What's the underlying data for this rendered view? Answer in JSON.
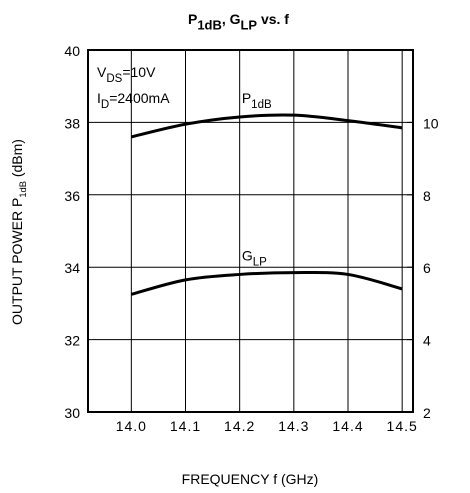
{
  "chart_data": {
    "type": "line",
    "title": [
      "P",
      "1dB",
      ", G",
      "LP",
      " vs. f"
    ],
    "x_label": "FREQUENCY  f (GHz)",
    "y_label": [
      "OUTPUT POWER P",
      "1dB",
      " (dBm)"
    ],
    "annotations": [
      [
        "V",
        "DS",
        "=10V"
      ],
      [
        "I",
        "D",
        "=2400mA"
      ]
    ],
    "x": [
      14.0,
      14.1,
      14.2,
      14.3,
      14.4,
      14.5
    ],
    "xlim": [
      13.92,
      14.52
    ],
    "xticks": [
      {
        "value": 14.0,
        "label": "14.0"
      },
      {
        "value": 14.1,
        "label": "14.1"
      },
      {
        "value": 14.2,
        "label": "14.2"
      },
      {
        "value": 14.3,
        "label": "14.3"
      },
      {
        "value": 14.4,
        "label": "14.4"
      },
      {
        "value": 14.5,
        "label": "14.5"
      }
    ],
    "ylim": [
      30,
      40
    ],
    "yticks": [
      30,
      32,
      34,
      36,
      38,
      40
    ],
    "y2lim": [
      2,
      12
    ],
    "y2ticks": [
      2,
      4,
      6,
      8,
      10
    ],
    "grid": true,
    "series": [
      {
        "name": [
          "P",
          "1dB"
        ],
        "color": "#000000",
        "values": [
          37.6,
          37.95,
          38.15,
          38.2,
          38.05,
          37.85
        ]
      },
      {
        "name": [
          "G",
          "LP"
        ],
        "color": "#000000",
        "axis": "y2",
        "values": [
          5.25,
          5.65,
          5.8,
          5.85,
          5.8,
          5.4
        ]
      }
    ]
  }
}
